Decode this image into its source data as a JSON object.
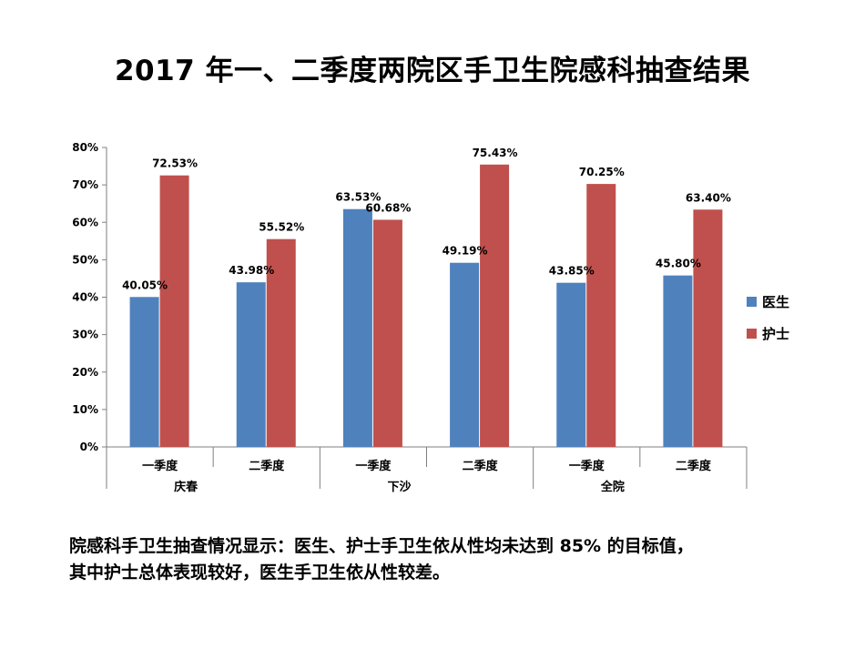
{
  "title": "2017 年一、二季度两院区手卫生院感科抽查结果",
  "note_line1": "院感科手卫生抽查情况显示：医生、护士手卫生依从性均未达到 85% 的目标值，",
  "note_line2": "其中护士总体表现较好，医生手卫生依从性较差。",
  "chart_data": {
    "type": "bar",
    "groups": [
      {
        "name": "庆春",
        "categories": [
          "一季度",
          "二季度"
        ]
      },
      {
        "name": "下沙",
        "categories": [
          "一季度",
          "二季度"
        ]
      },
      {
        "name": "全院",
        "categories": [
          "一季度",
          "二季度"
        ]
      }
    ],
    "series": [
      {
        "name": "医生",
        "color": "#4F81BD",
        "values": [
          40.05,
          43.98,
          63.53,
          49.19,
          43.85,
          45.8
        ]
      },
      {
        "name": "护士",
        "color": "#C0504D",
        "values": [
          72.53,
          55.52,
          60.68,
          75.43,
          70.25,
          63.4
        ]
      }
    ],
    "data_labels": [
      [
        "40.05%",
        "43.98%",
        "63.53%",
        "49.19%",
        "43.85%",
        "45.80%"
      ],
      [
        "72.53%",
        "55.52%",
        "60.68%",
        "75.43%",
        "70.25%",
        "63.40%"
      ]
    ],
    "y_ticks": [
      "0%",
      "10%",
      "20%",
      "30%",
      "40%",
      "50%",
      "60%",
      "70%",
      "80%"
    ],
    "ylim": [
      0,
      80
    ],
    "grid": false,
    "legend_position": "right"
  }
}
